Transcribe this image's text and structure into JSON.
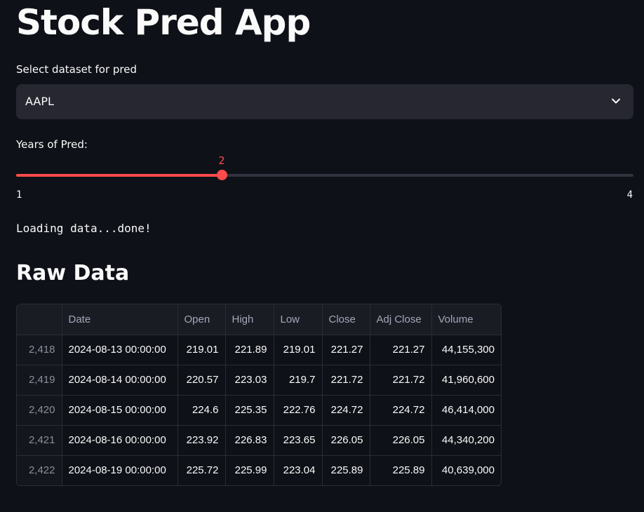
{
  "app": {
    "title": "Stock Pred App"
  },
  "dataset_select": {
    "label": "Select dataset for pred",
    "value": "AAPL",
    "icon": "chevron-down-icon"
  },
  "years_slider": {
    "label": "Years of Pred:",
    "value": 2,
    "value_text": "2",
    "min": 1,
    "max": 4,
    "min_text": "1",
    "max_text": "4",
    "accent_color": "#ff4b4b"
  },
  "status": {
    "text": "Loading data...done!"
  },
  "raw_data": {
    "title": "Raw Data",
    "columns": [
      "",
      "Date",
      "Open",
      "High",
      "Low",
      "Close",
      "Adj Close",
      "Volume"
    ],
    "rows": [
      [
        "2,418",
        "2024-08-13 00:00:00",
        "219.01",
        "221.89",
        "219.01",
        "221.27",
        "221.27",
        "44,155,300"
      ],
      [
        "2,419",
        "2024-08-14 00:00:00",
        "220.57",
        "223.03",
        "219.7",
        "221.72",
        "221.72",
        "41,960,600"
      ],
      [
        "2,420",
        "2024-08-15 00:00:00",
        "224.6",
        "225.35",
        "222.76",
        "224.72",
        "224.72",
        "46,414,000"
      ],
      [
        "2,421",
        "2024-08-16 00:00:00",
        "223.92",
        "226.83",
        "223.65",
        "226.05",
        "226.05",
        "44,340,200"
      ],
      [
        "2,422",
        "2024-08-19 00:00:00",
        "225.72",
        "225.99",
        "223.04",
        "225.89",
        "225.89",
        "40,639,000"
      ]
    ]
  }
}
